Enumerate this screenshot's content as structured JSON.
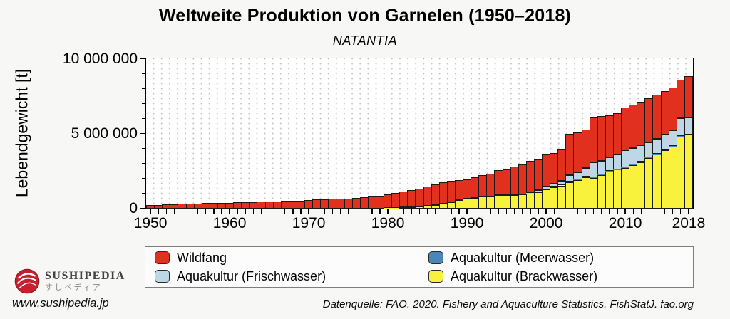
{
  "header": {
    "title": "Weltweite Produktion von Garnelen (1950–2018)",
    "subtitle": "NATANTIA"
  },
  "axes": {
    "ylabel": "Lebendgewicht [t]",
    "yticks": [
      {
        "value": 0,
        "label": "0"
      },
      {
        "value": 5000000,
        "label": "5 000 000"
      },
      {
        "value": 10000000,
        "label": "10 000 000"
      }
    ],
    "y_minor_step": 1000000,
    "xtick_labels": [
      {
        "year": 1950,
        "label": "1950"
      },
      {
        "year": 1960,
        "label": "1960"
      },
      {
        "year": 1970,
        "label": "1970"
      },
      {
        "year": 1980,
        "label": "1980"
      },
      {
        "year": 1990,
        "label": "1990"
      },
      {
        "year": 2000,
        "label": "2000"
      },
      {
        "year": 2010,
        "label": "2010"
      },
      {
        "year": 2018,
        "label": "2018"
      }
    ]
  },
  "chart_data": {
    "type": "bar",
    "stacked": true,
    "title": "Weltweite Produktion von Garnelen (1950–2018)",
    "subtitle": "NATANTIA",
    "xlabel": "",
    "ylabel": "Lebendgewicht [t]",
    "unit": "tonnes live weight",
    "ylim": [
      0,
      10000000
    ],
    "grid": "dotted",
    "x": [
      1950,
      1951,
      1952,
      1953,
      1954,
      1955,
      1956,
      1957,
      1958,
      1959,
      1960,
      1961,
      1962,
      1963,
      1964,
      1965,
      1966,
      1967,
      1968,
      1969,
      1970,
      1971,
      1972,
      1973,
      1974,
      1975,
      1976,
      1977,
      1978,
      1979,
      1980,
      1981,
      1982,
      1983,
      1984,
      1985,
      1986,
      1987,
      1988,
      1989,
      1990,
      1991,
      1992,
      1993,
      1994,
      1995,
      1996,
      1997,
      1998,
      1999,
      2000,
      2001,
      2002,
      2003,
      2004,
      2005,
      2006,
      2007,
      2008,
      2009,
      2010,
      2011,
      2012,
      2013,
      2014,
      2015,
      2016,
      2017,
      2018
    ],
    "stack_order_bottom_to_top": [
      "Aquakultur (Brackwasser)",
      "Aquakultur (Meerwasser)",
      "Aquakultur (Frischwasser)",
      "Wildfang"
    ],
    "series": [
      {
        "name": "Wildfang",
        "color": "#e2301f",
        "values": [
          250000,
          260000,
          280000,
          290000,
          320000,
          330000,
          350000,
          360000,
          370000,
          390000,
          400000,
          410000,
          430000,
          440000,
          460000,
          470000,
          490000,
          510000,
          530000,
          540000,
          570000,
          600000,
          640000,
          680000,
          660000,
          650000,
          700000,
          780000,
          860000,
          840000,
          910000,
          980000,
          1060000,
          1120000,
          1220000,
          1290000,
          1400000,
          1420000,
          1400000,
          1350000,
          1280000,
          1380000,
          1440000,
          1540000,
          1650000,
          1700000,
          1890000,
          2000000,
          2130000,
          2120000,
          2190000,
          2020000,
          2150000,
          2750000,
          2670000,
          2580000,
          3020000,
          3000000,
          2830000,
          2800000,
          2840000,
          2900000,
          2910000,
          2950000,
          2910000,
          2900000,
          2840000,
          2600000,
          2750000
        ]
      },
      {
        "name": "Aquakultur (Meerwasser)",
        "color": "#4a86b8",
        "values": [
          0,
          0,
          0,
          0,
          0,
          0,
          0,
          0,
          0,
          0,
          0,
          0,
          0,
          0,
          0,
          0,
          0,
          0,
          0,
          0,
          0,
          0,
          0,
          0,
          0,
          0,
          0,
          0,
          0,
          0,
          0,
          0,
          0,
          0,
          0,
          0,
          0,
          0,
          0,
          0,
          10000,
          10000,
          10000,
          10000,
          10000,
          10000,
          10000,
          10000,
          10000,
          10000,
          10000,
          10000,
          10000,
          30000,
          30000,
          30000,
          30000,
          30000,
          30000,
          30000,
          30000,
          30000,
          30000,
          30000,
          30000,
          30000,
          30000,
          30000,
          30000
        ]
      },
      {
        "name": "Aquakultur (Frischwasser)",
        "color": "#bdd7e7",
        "values": [
          0,
          0,
          0,
          0,
          0,
          0,
          0,
          0,
          0,
          0,
          0,
          0,
          0,
          0,
          0,
          0,
          0,
          0,
          0,
          0,
          0,
          0,
          0,
          0,
          0,
          0,
          0,
          0,
          0,
          0,
          0,
          0,
          0,
          0,
          0,
          0,
          0,
          0,
          0,
          0,
          0,
          0,
          0,
          0,
          0,
          0,
          0,
          0,
          60000,
          120000,
          160000,
          220000,
          300000,
          450000,
          500000,
          590000,
          1000000,
          900000,
          920000,
          970000,
          1150000,
          1120000,
          1080000,
          1020000,
          1000000,
          1020000,
          1070000,
          1150000,
          1150000
        ]
      },
      {
        "name": "Aquakultur (Brackwasser)",
        "color": "#f8f23d",
        "values": [
          0,
          0,
          0,
          0,
          0,
          0,
          0,
          0,
          0,
          0,
          0,
          0,
          0,
          0,
          0,
          0,
          0,
          0,
          0,
          0,
          0,
          0,
          0,
          0,
          0,
          0,
          0,
          0,
          0,
          0,
          30000,
          50000,
          80000,
          100000,
          130000,
          170000,
          220000,
          350000,
          450000,
          550000,
          650000,
          720000,
          800000,
          800000,
          900000,
          900000,
          900000,
          930000,
          1000000,
          1100000,
          1300000,
          1450000,
          1540000,
          1770000,
          1900000,
          2100000,
          2050000,
          2250000,
          2480000,
          2600000,
          2720000,
          2900000,
          3110000,
          3400000,
          3660000,
          3900000,
          4140000,
          4850000,
          4930000
        ]
      }
    ]
  },
  "legend": {
    "items": [
      {
        "label": "Wildfang",
        "color": "#e2301f"
      },
      {
        "label": "Aquakultur (Frischwasser)",
        "color": "#bdd7e7"
      },
      {
        "label": "Aquakultur (Meerwasser)",
        "color": "#4a86b8"
      },
      {
        "label": "Aquakultur (Brackwasser)",
        "color": "#f8f23d"
      }
    ]
  },
  "footer": {
    "brand_name": "Sushipedia",
    "brand_name_display": "SUSHIPEDIA",
    "brand_jp": "すしペディア",
    "url": "www.sushipedia.jp",
    "datasource": "Datenquelle: FAO. 2020. Fishery and Aquaculture Statistics. FishStatJ. fao.org"
  }
}
